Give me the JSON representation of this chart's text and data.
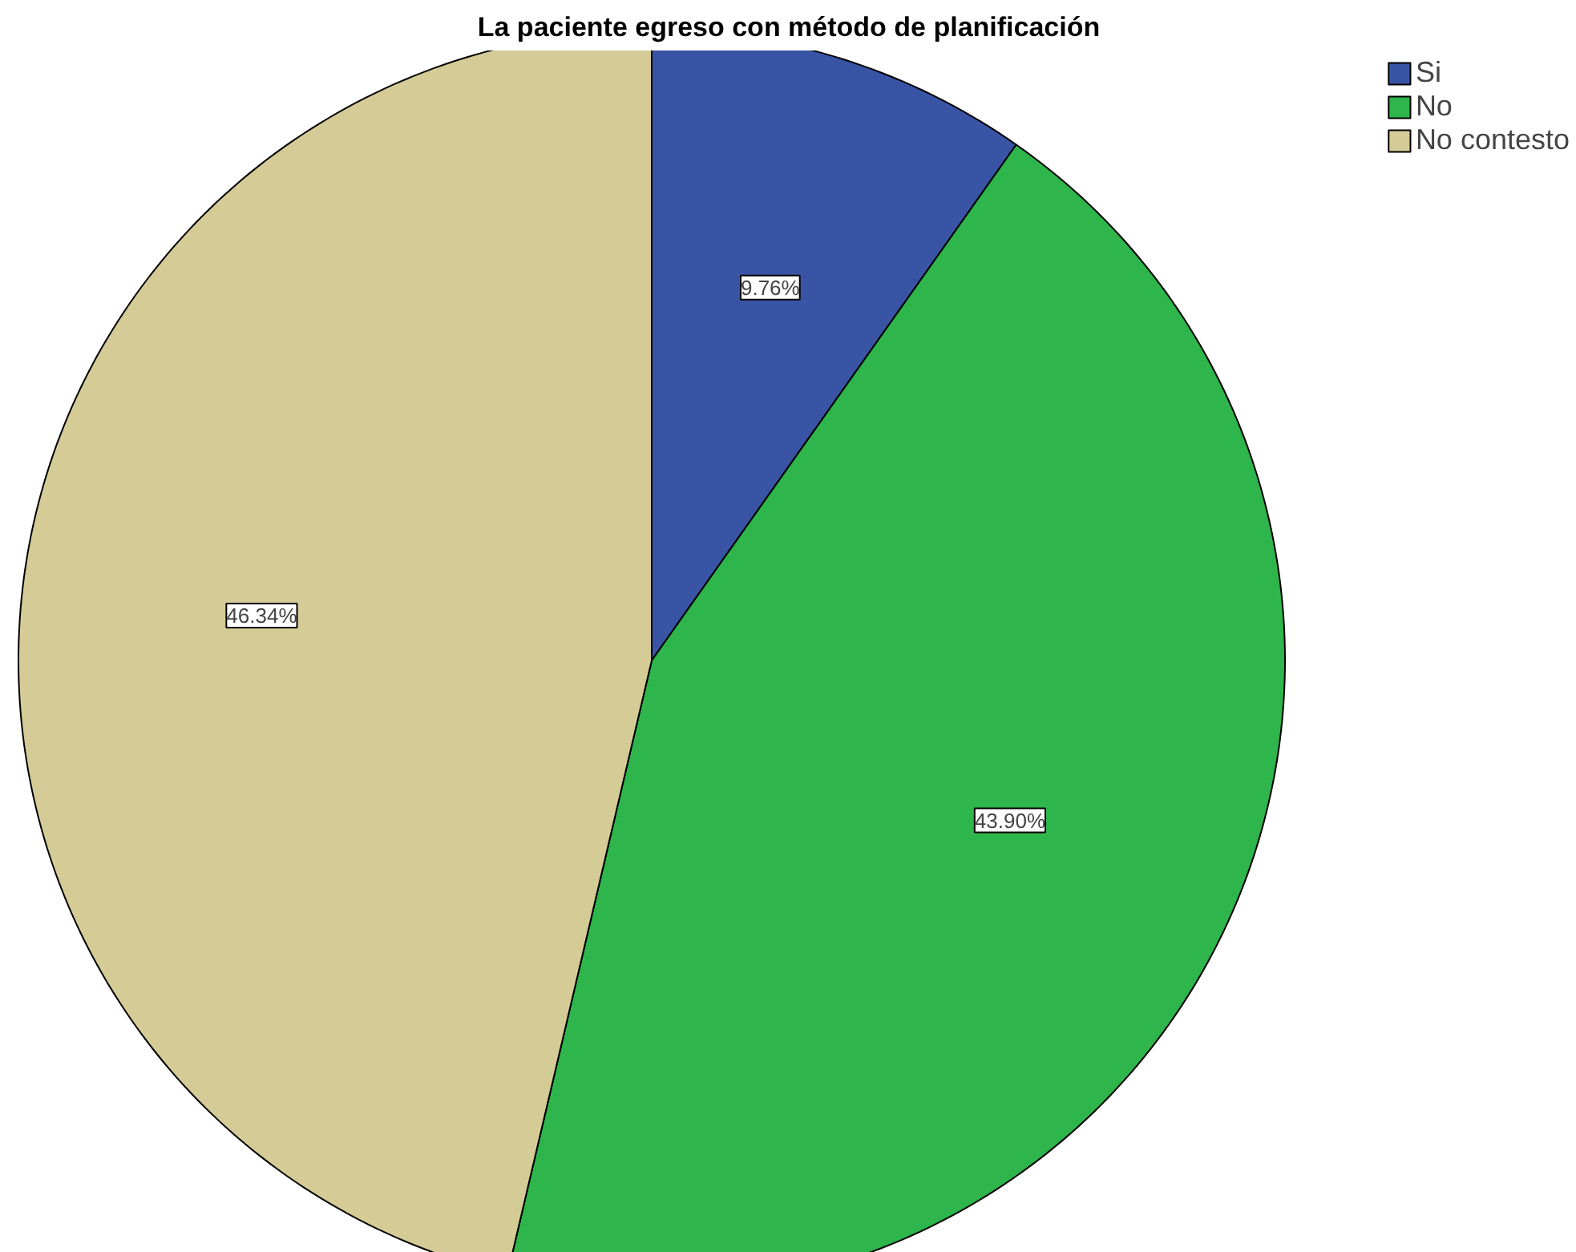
{
  "chart_data": {
    "type": "pie",
    "title": "La paciente egreso con método de planificación",
    "categories": [
      "Si",
      "No",
      "No contesto"
    ],
    "values": [
      9.76,
      43.9,
      46.34
    ],
    "value_labels": [
      "9.76%",
      "43.90%",
      "46.34%"
    ],
    "colors": [
      "#3a54a5",
      "#2eb54b",
      "#d4cb97"
    ],
    "legend": "top right"
  }
}
